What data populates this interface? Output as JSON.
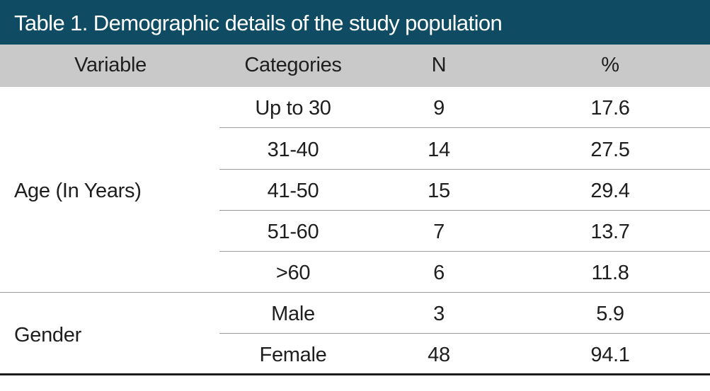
{
  "title": "Table 1. Demographic details of the study population",
  "headers": {
    "variable": "Variable",
    "categories": "Categories",
    "n": "N",
    "percent": "%"
  },
  "groups": [
    {
      "variable": "Age (In Years)",
      "rows": [
        {
          "category": "Up to 30",
          "n": "9",
          "percent": "17.6"
        },
        {
          "category": "31-40",
          "n": "14",
          "percent": "27.5"
        },
        {
          "category": "41-50",
          "n": "15",
          "percent": "29.4"
        },
        {
          "category": "51-60",
          "n": "7",
          "percent": "13.7"
        },
        {
          "category": ">60",
          "n": "6",
          "percent": "11.8"
        }
      ]
    },
    {
      "variable": "Gender",
      "rows": [
        {
          "category": "Male",
          "n": "3",
          "percent": "5.9"
        },
        {
          "category": "Female",
          "n": "48",
          "percent": "94.1"
        }
      ]
    }
  ]
}
